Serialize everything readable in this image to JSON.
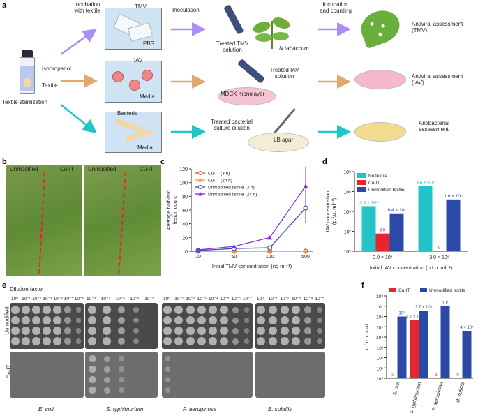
{
  "panels": {
    "a": "a",
    "b": "b",
    "c": "c",
    "d": "d",
    "e": "e",
    "f": "f"
  },
  "panel_a": {
    "incubation_with_textile": "Incubation\nwith textile",
    "inoculation": "Inoculation",
    "incubation_and_counting": "Incubation\nand counting",
    "tmv": "TMV",
    "pbs": "PBS",
    "iav": "IAV",
    "media1": "Media",
    "bacteria": "Bacteria",
    "media2": "Media",
    "isopropanol": "Isopropanol",
    "textile": "Textile",
    "textile_sterilization": "Textile sterilization",
    "treated_tmv": "Treated TMV\nsolution",
    "n_tabaccum": "N.tabaccum",
    "treated_iav": "Treated IAV\nsolution",
    "mdck": "MDCK monolayer",
    "treated_bact": "Treated bacterial\nculture dilution",
    "lb_agar": "LB agar",
    "antiviral_tmv": "Antiviral assessment\n(TMV)",
    "antiviral_iav": "Antiviral assessment\n(IAV)",
    "antibacterial": "Antibacterial\nassessment",
    "colors": {
      "purple": "#a98ef5",
      "orange": "#e0a86a",
      "teal": "#22c4c8"
    }
  },
  "panel_b": {
    "labels": [
      "Unmodified",
      "Cu-IT",
      "Unmodified",
      "Cu-IT"
    ]
  },
  "panel_c": {
    "ylabel": "Average half-leaf\nlesion count",
    "xlabel": "Initial TMV concentration (ng ml⁻¹)",
    "xticks": [
      "10",
      "50",
      "100",
      "500"
    ],
    "yticks": [
      "0",
      "20",
      "40",
      "60",
      "80",
      "100",
      "120"
    ],
    "legend": [
      "Cu-IT (3 h)",
      "Cu-IT (24 h)",
      "Unmodified textile (3 h)",
      "Unmodified textile (24 h)"
    ]
  },
  "panel_d": {
    "ylabel": "IAV concentration\n(p.f.u. ml⁻¹)",
    "xlabel": "Initial IAV concentration (p.f.u. ml⁻¹)",
    "legend": [
      "No textile",
      "Cu-IT",
      "Unmodified textile"
    ],
    "yticks": [
      "10⁰",
      "10²",
      "10⁴",
      "10⁶",
      "10⁸"
    ],
    "groups": [
      "3.0 × 10⁴",
      "3.0 × 10⁶"
    ],
    "bar_labels": [
      "3.4 × 10⁴",
      "60",
      "6.4 × 10³",
      "3.6 × 10⁶",
      "0",
      "1.6 × 10⁵"
    ]
  },
  "panel_e": {
    "title": "Dilution factor",
    "row_labels": [
      "Unmodified",
      "Cu-IT"
    ],
    "species": [
      "E. coli",
      "S. typhimurium",
      "P. aeruginosa",
      "B. subtilis"
    ],
    "dilutions_a": [
      "10⁰",
      "10⁻¹",
      "10⁻²",
      "10⁻³",
      "10⁻⁴",
      "10⁻⁵",
      "10⁻⁶"
    ],
    "dilutions_b": [
      "10⁻³",
      "10⁻⁴",
      "10⁻⁵",
      "10⁻⁶",
      "10⁻⁷"
    ],
    "dilutions_c": [
      "10⁰",
      "10⁻¹",
      "10⁻²",
      "10⁻³",
      "10⁻⁴",
      "10⁻⁵",
      "10⁻⁶",
      "10⁻⁷"
    ],
    "dilutions_d": [
      "10⁰",
      "10⁻¹",
      "10⁻²",
      "10⁻³",
      "10⁻⁴",
      "10⁻⁵"
    ]
  },
  "panel_f": {
    "ylabel": "c.f.u. count",
    "legend": [
      "Cu-IT",
      "Unmodified textile"
    ],
    "yticks": [
      "10⁰",
      "10¹",
      "10²",
      "10³",
      "10⁴",
      "10⁵",
      "10⁶",
      "10⁷",
      "10⁸"
    ],
    "categories": [
      "E. coli",
      "S. typhimurium",
      "P. aeruginosa",
      "B. subtilis"
    ],
    "bar_labels": [
      "0",
      "10⁶",
      "4.7 × 10⁵",
      "3.7 × 10⁶",
      "1",
      "10⁷",
      "0",
      "4 × 10⁴"
    ]
  },
  "chart_data": [
    {
      "type": "line",
      "panel": "c",
      "xlabel": "Initial TMV concentration (ng ml⁻¹)",
      "ylabel": "Average half-leaf lesion count",
      "categories": [
        "10",
        "50",
        "100",
        "500"
      ],
      "ylim": [
        0,
        120
      ],
      "series": [
        {
          "name": "Cu-IT (3 h)",
          "color": "#e0553f",
          "values": [
            0,
            0,
            0,
            0
          ]
        },
        {
          "name": "Cu-IT (24 h)",
          "color": "#f29a2e",
          "values": [
            0,
            0,
            0,
            0
          ]
        },
        {
          "name": "Unmodified textile (3 h)",
          "color": "#3e4fb0",
          "values": [
            1,
            4,
            5,
            63
          ]
        },
        {
          "name": "Unmodified textile (24 h)",
          "color": "#8a2be2",
          "values": [
            2,
            7,
            20,
            95
          ]
        }
      ]
    },
    {
      "type": "bar",
      "panel": "d",
      "scale": "log",
      "categories": [
        "3.0 × 10⁴",
        "3.0 × 10⁶"
      ],
      "ylim": [
        1,
        100000000
      ],
      "series": [
        {
          "name": "No textile",
          "color": "#22c4c8",
          "values": [
            34000,
            3600000
          ]
        },
        {
          "name": "Cu-IT",
          "color": "#e8242f",
          "values": [
            60,
            0
          ]
        },
        {
          "name": "Unmodified textile",
          "color": "#2b4aa8",
          "values": [
            6400,
            160000
          ]
        }
      ]
    },
    {
      "type": "bar",
      "panel": "f",
      "scale": "log",
      "ylabel": "c.f.u. count",
      "categories": [
        "E. coli",
        "S. typhimurium",
        "P. aeruginosa",
        "B. subtilis"
      ],
      "ylim": [
        1,
        100000000
      ],
      "series": [
        {
          "name": "Cu-IT",
          "color": "#e8242f",
          "values": [
            0,
            470000,
            1,
            0
          ]
        },
        {
          "name": "Unmodified textile",
          "color": "#2b4aa8",
          "values": [
            1000000,
            3700000,
            10000000,
            40000
          ]
        }
      ]
    }
  ]
}
